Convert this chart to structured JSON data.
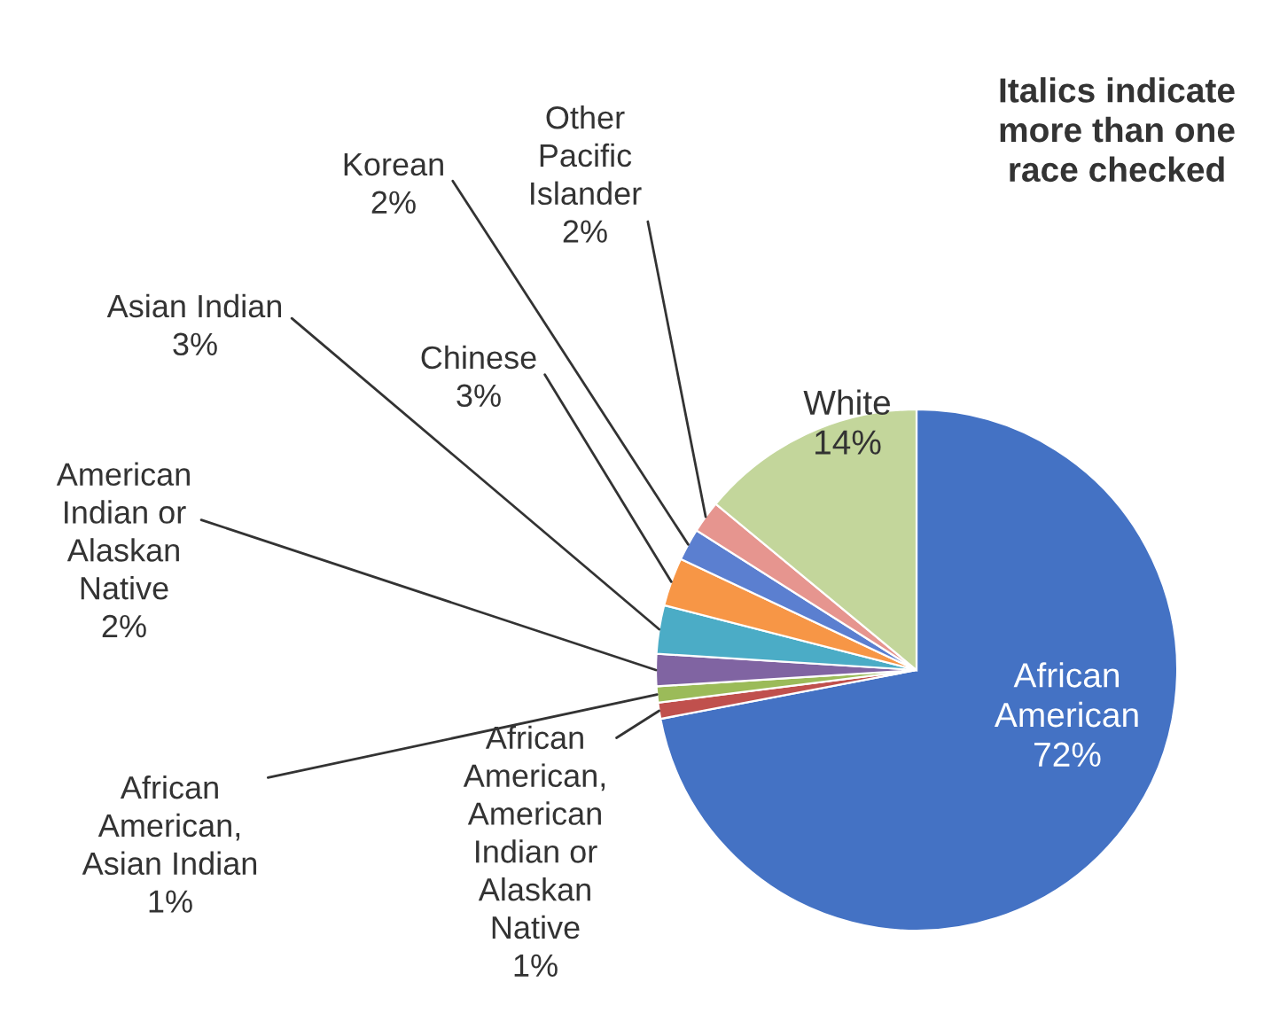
{
  "chart_data": {
    "type": "pie",
    "categories": [
      "African\nAmerican",
      "African\nAmerican,\nAmerican\nIndian or\nAlaskan\nNative",
      "African\nAmerican,\nAsian Indian",
      "American\nIndian or\nAlaskan\nNative",
      "Asian Indian",
      "Chinese",
      "Korean",
      "Other\nPacific\nIslander",
      "White"
    ],
    "values": [
      72,
      1,
      1,
      2,
      3,
      3,
      2,
      2,
      14
    ],
    "value_labels": [
      "72%",
      "1%",
      "1%",
      "2%",
      "3%",
      "3%",
      "2%",
      "2%",
      "14%"
    ],
    "colors": [
      "#4472c4",
      "#c0504d",
      "#9bbb59",
      "#8064a2",
      "#4bacc6",
      "#f79646",
      "#5b7fd0",
      "#e6958f",
      "#c3d69b"
    ],
    "annotations": [
      "Italics indicate\nmore than one\nrace checked"
    ]
  }
}
